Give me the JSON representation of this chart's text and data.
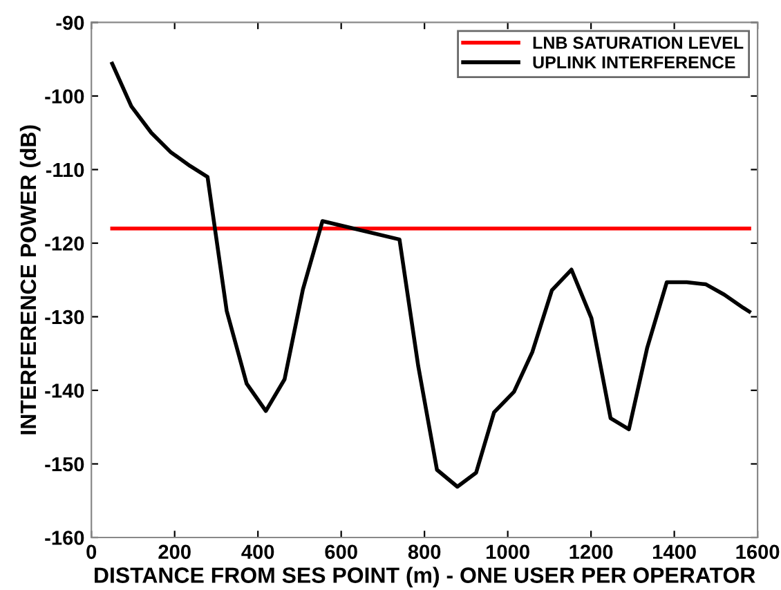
{
  "chart_data": {
    "type": "line",
    "xlabel": "DISTANCE FROM SES POINT (m) - ONE USER PER OPERATOR",
    "ylabel": "INTERFERENCE POWER (dB)",
    "series": [
      {
        "name": "LNB SATURATION LEVEL",
        "color": "#ff0000",
        "x": [
          50,
          1580
        ],
        "values": [
          -118,
          -118
        ]
      },
      {
        "name": "UPLINK INTERFERENCE",
        "color": "#000000",
        "x": [
          50,
          96,
          144,
          190,
          237,
          279,
          325,
          373,
          419,
          464,
          508,
          555,
          740,
          785,
          830,
          879,
          924,
          967,
          1015,
          1059,
          1106,
          1153,
          1201,
          1247,
          1291,
          1335,
          1382,
          1430,
          1476,
          1520,
          1566,
          1580
        ],
        "values": [
          -95.6,
          -101.4,
          -105,
          -107.6,
          -109.5,
          -111,
          -129.2,
          -139.1,
          -142.8,
          -138.5,
          -126.3,
          -117,
          -119.5,
          -136.7,
          -150.8,
          -153.1,
          -151.2,
          -143,
          -140.2,
          -134.8,
          -126.4,
          -123.6,
          -130.2,
          -143.8,
          -145.3,
          -134.2,
          -125.3,
          -125.3,
          -125.6,
          -127,
          -128.8,
          -129.3
        ]
      }
    ],
    "xlim": [
      0,
      1600
    ],
    "xticks": [
      0,
      200,
      400,
      600,
      800,
      1000,
      1200,
      1400,
      1600
    ],
    "ylim": [
      -160,
      -90
    ],
    "yticks": [
      -160,
      -150,
      -140,
      -130,
      -120,
      -110,
      -100,
      -90
    ],
    "legend": "top right",
    "grid": false,
    "marker": "none",
    "line_style": "solid"
  }
}
